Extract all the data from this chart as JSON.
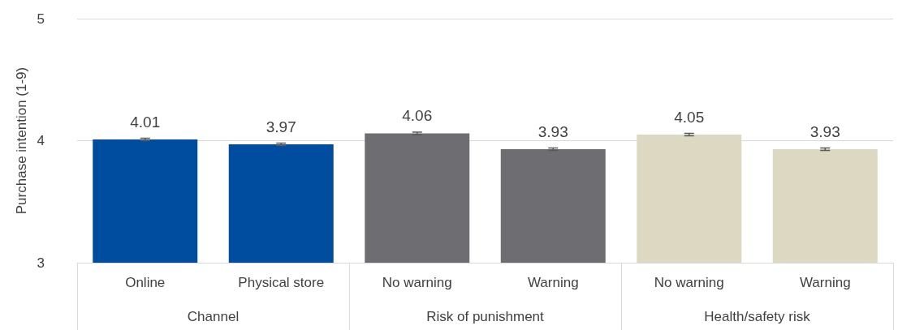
{
  "chart_data": {
    "type": "bar",
    "ylabel": "Purchase intention (1-9)",
    "categories": [
      "Online",
      "Physical store",
      "No warning",
      "Warning",
      "No warning",
      "Warning"
    ],
    "values": [
      4.01,
      3.97,
      4.06,
      3.93,
      4.05,
      3.93
    ],
    "errors": [
      0.01,
      0.01,
      0.01,
      0.01,
      0.01,
      0.01
    ],
    "colors": [
      "#004c9e",
      "#004c9e",
      "#6e6d72",
      "#6e6d72",
      "#ddd8c1",
      "#ddd8c1"
    ],
    "ylim": [
      3,
      5
    ],
    "yticks": [
      3,
      4,
      5
    ],
    "grid": "y",
    "data_labels": true,
    "annotations": [
      "Channel",
      "Risk of punishment",
      "Health/safety risk"
    ]
  }
}
